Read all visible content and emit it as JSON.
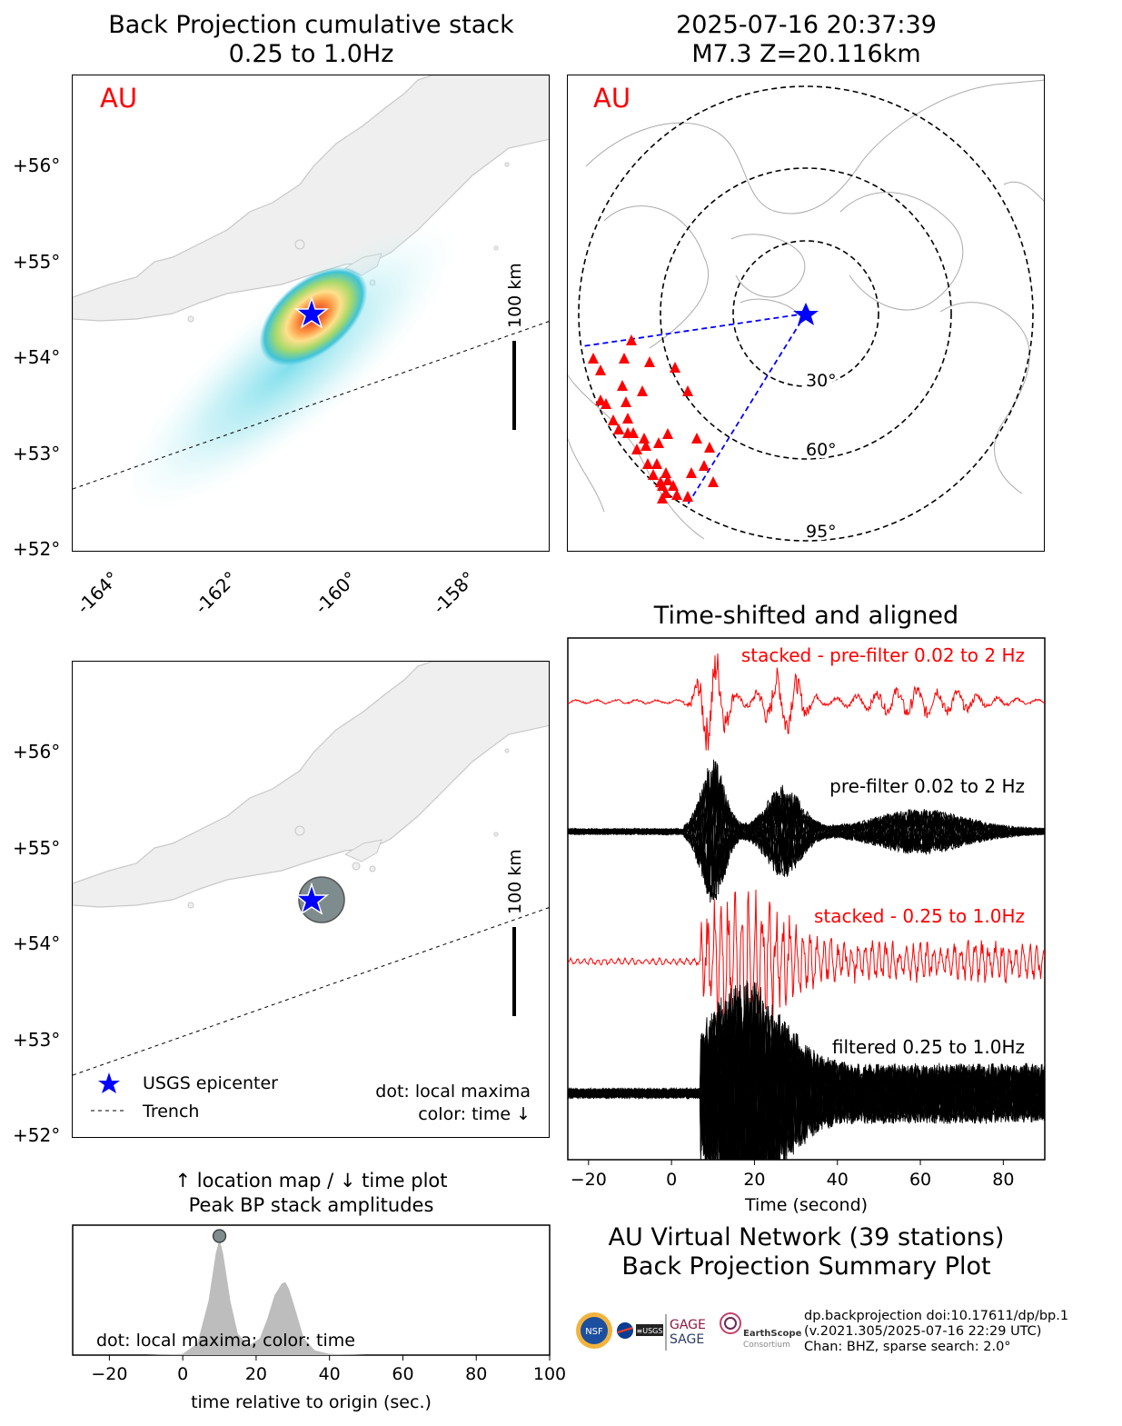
{
  "panel_tl": {
    "title_line1": "Back Projection cumulative stack",
    "title_line2": "0.25 to 1.0Hz",
    "network_label": "AU",
    "scale_label": "100 km"
  },
  "panel_tr": {
    "title_line1": "2025-07-16 20:37:39",
    "title_line2": "M7.3 Z=20.116km",
    "network_label": "AU",
    "ring_labels": [
      "30°",
      "60°",
      "95°"
    ]
  },
  "panel_bl": {
    "scale_label": "100 km",
    "legend_epicenter": "USGS epicenter",
    "legend_trench": "Trench",
    "note_line1": "dot: local maxima",
    "note_line2": "color: time ↓"
  },
  "lat_ticks": [
    "+56°",
    "+55°",
    "+54°",
    "+53°",
    "+52°"
  ],
  "lon_ticks": [
    "-164°",
    "-162°",
    "-160°",
    "-158°"
  ],
  "panel_time": {
    "title_line1": "↑ location map / ↓ time plot",
    "title_line2": "Peak BP stack amplitudes",
    "note": "dot: local maxima; color: time",
    "xlabel": "time relative to origin (sec.)"
  },
  "panel_wave": {
    "title": "Time-shifted and aligned",
    "label_stacked_pre": "stacked - pre-filter 0.02 to 2 Hz",
    "label_pre": "pre-filter 0.02 to 2 Hz",
    "label_stacked_bp": "stacked - 0.25 to 1.0Hz",
    "label_filtered": "filtered 0.25 to 1.0Hz",
    "xlabel": "Time (second)"
  },
  "summary": {
    "line1": "AU Virtual Network (39 stations)",
    "line2": "Back Projection Summary Plot"
  },
  "credits": {
    "line1": "dp.backprojection doi:10.17611/dp/bp.1",
    "line2": "(v.2021.305/2025-07-16 22:29 UTC)",
    "line3": "Chan: BHZ, sparse search: 2.0°",
    "logo_gage": "GAGE",
    "logo_sage": "SAGE",
    "logo_earthscope": "EarthScope",
    "logo_consortium": "Consortium",
    "logo_nsf": "NSF",
    "logo_usgs": "≡USGS"
  },
  "colors": {
    "red": "#ff0000",
    "blue": "#0000ff",
    "land": "#efefef",
    "coast": "#c8c8c8",
    "gray_fill": "#bdbdbd",
    "maxima_dot": "#7f8c8d"
  },
  "chart_data": [
    {
      "type": "area",
      "x": [
        -30,
        -20,
        -10,
        0,
        4,
        7,
        9,
        10,
        11,
        13,
        15,
        18,
        21,
        23,
        25,
        27,
        28,
        29,
        31,
        33,
        36,
        40,
        50,
        60,
        80,
        100
      ],
      "values": [
        0,
        0,
        0,
        0.01,
        0.1,
        0.45,
        0.85,
        0.97,
        0.85,
        0.45,
        0.18,
        0.08,
        0.14,
        0.3,
        0.5,
        0.6,
        0.61,
        0.55,
        0.35,
        0.14,
        0.04,
        0.01,
        0,
        0,
        0,
        0
      ],
      "maxima": [
        {
          "x": 10,
          "y": 1.0
        }
      ],
      "xlim": [
        -30,
        100
      ],
      "xticks": [
        -20,
        0,
        20,
        40,
        60,
        80,
        100
      ],
      "xlabel": "time relative to origin (sec.)"
    },
    {
      "type": "line",
      "xlim": [
        -25,
        90
      ],
      "xticks": [
        -20,
        0,
        20,
        40,
        60,
        80
      ],
      "xlabel": "Time (second)",
      "series": [
        {
          "name": "stacked - pre-filter 0.02 to 2 Hz",
          "color": "#ff0000"
        },
        {
          "name": "pre-filter 0.02 to 2 Hz",
          "color": "#000000"
        },
        {
          "name": "stacked - 0.25 to 1.0Hz",
          "color": "#ff0000"
        },
        {
          "name": "filtered 0.25 to 1.0Hz",
          "color": "#000000"
        }
      ]
    },
    {
      "type": "scatter",
      "xlabel": "",
      "ylabel": "",
      "xlim": [
        -165,
        -157
      ],
      "ylim": [
        52,
        57
      ],
      "epicenter": {
        "lon": -160.5,
        "lat": 54.45
      },
      "series": []
    }
  ]
}
